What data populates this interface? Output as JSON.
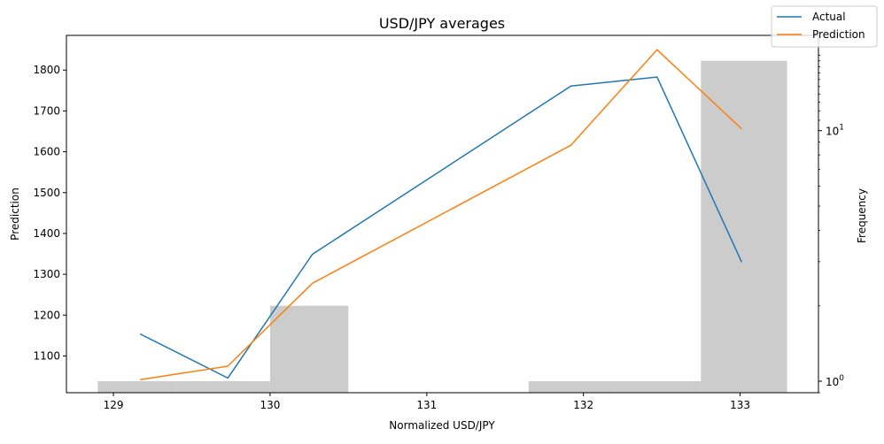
{
  "chart_data": {
    "type": "line",
    "title": "USD/JPY averages",
    "xlabel": "Normalized USD/JPY",
    "ylabel": "Prediction",
    "y2label": "Frequency",
    "xlim": [
      128.7,
      133.5
    ],
    "ylim": [
      1010,
      1885
    ],
    "y2lim": [
      0.9,
      24
    ],
    "y2scale": "log",
    "x_ticks": [
      129,
      130,
      131,
      132,
      133
    ],
    "y_ticks": [
      1100,
      1200,
      1300,
      1400,
      1500,
      1600,
      1700,
      1800
    ],
    "y2_ticks": [
      {
        "value": 1,
        "base": "10",
        "exp": "0"
      },
      {
        "value": 10,
        "base": "10",
        "exp": "1"
      }
    ],
    "series": [
      {
        "name": "Actual",
        "color": "#1f77b4",
        "x": [
          129.17,
          129.73,
          130.27,
          131.92,
          132.47,
          133.01
        ],
        "values": [
          1154,
          1046,
          1349,
          1761,
          1783,
          1330
        ]
      },
      {
        "name": "Prediction",
        "color": "#ff7f0e",
        "x": [
          129.17,
          129.73,
          130.27,
          131.92,
          132.47,
          133.01
        ],
        "values": [
          1042,
          1075,
          1278,
          1616,
          1850,
          1656
        ]
      }
    ],
    "histogram": {
      "color": "#cccccc",
      "bins": [
        {
          "x0": 128.9,
          "x1": 129.4,
          "count": 1
        },
        {
          "x0": 129.4,
          "x1": 130.0,
          "count": 1
        },
        {
          "x0": 130.0,
          "x1": 130.5,
          "count": 2
        },
        {
          "x0": 131.65,
          "x1": 132.2,
          "count": 1
        },
        {
          "x0": 132.2,
          "x1": 132.75,
          "count": 1
        },
        {
          "x0": 132.75,
          "x1": 133.3,
          "count": 19
        }
      ]
    },
    "legend": {
      "placement": "top-right",
      "entries": [
        "Actual",
        "Prediction"
      ]
    },
    "grid": false
  }
}
